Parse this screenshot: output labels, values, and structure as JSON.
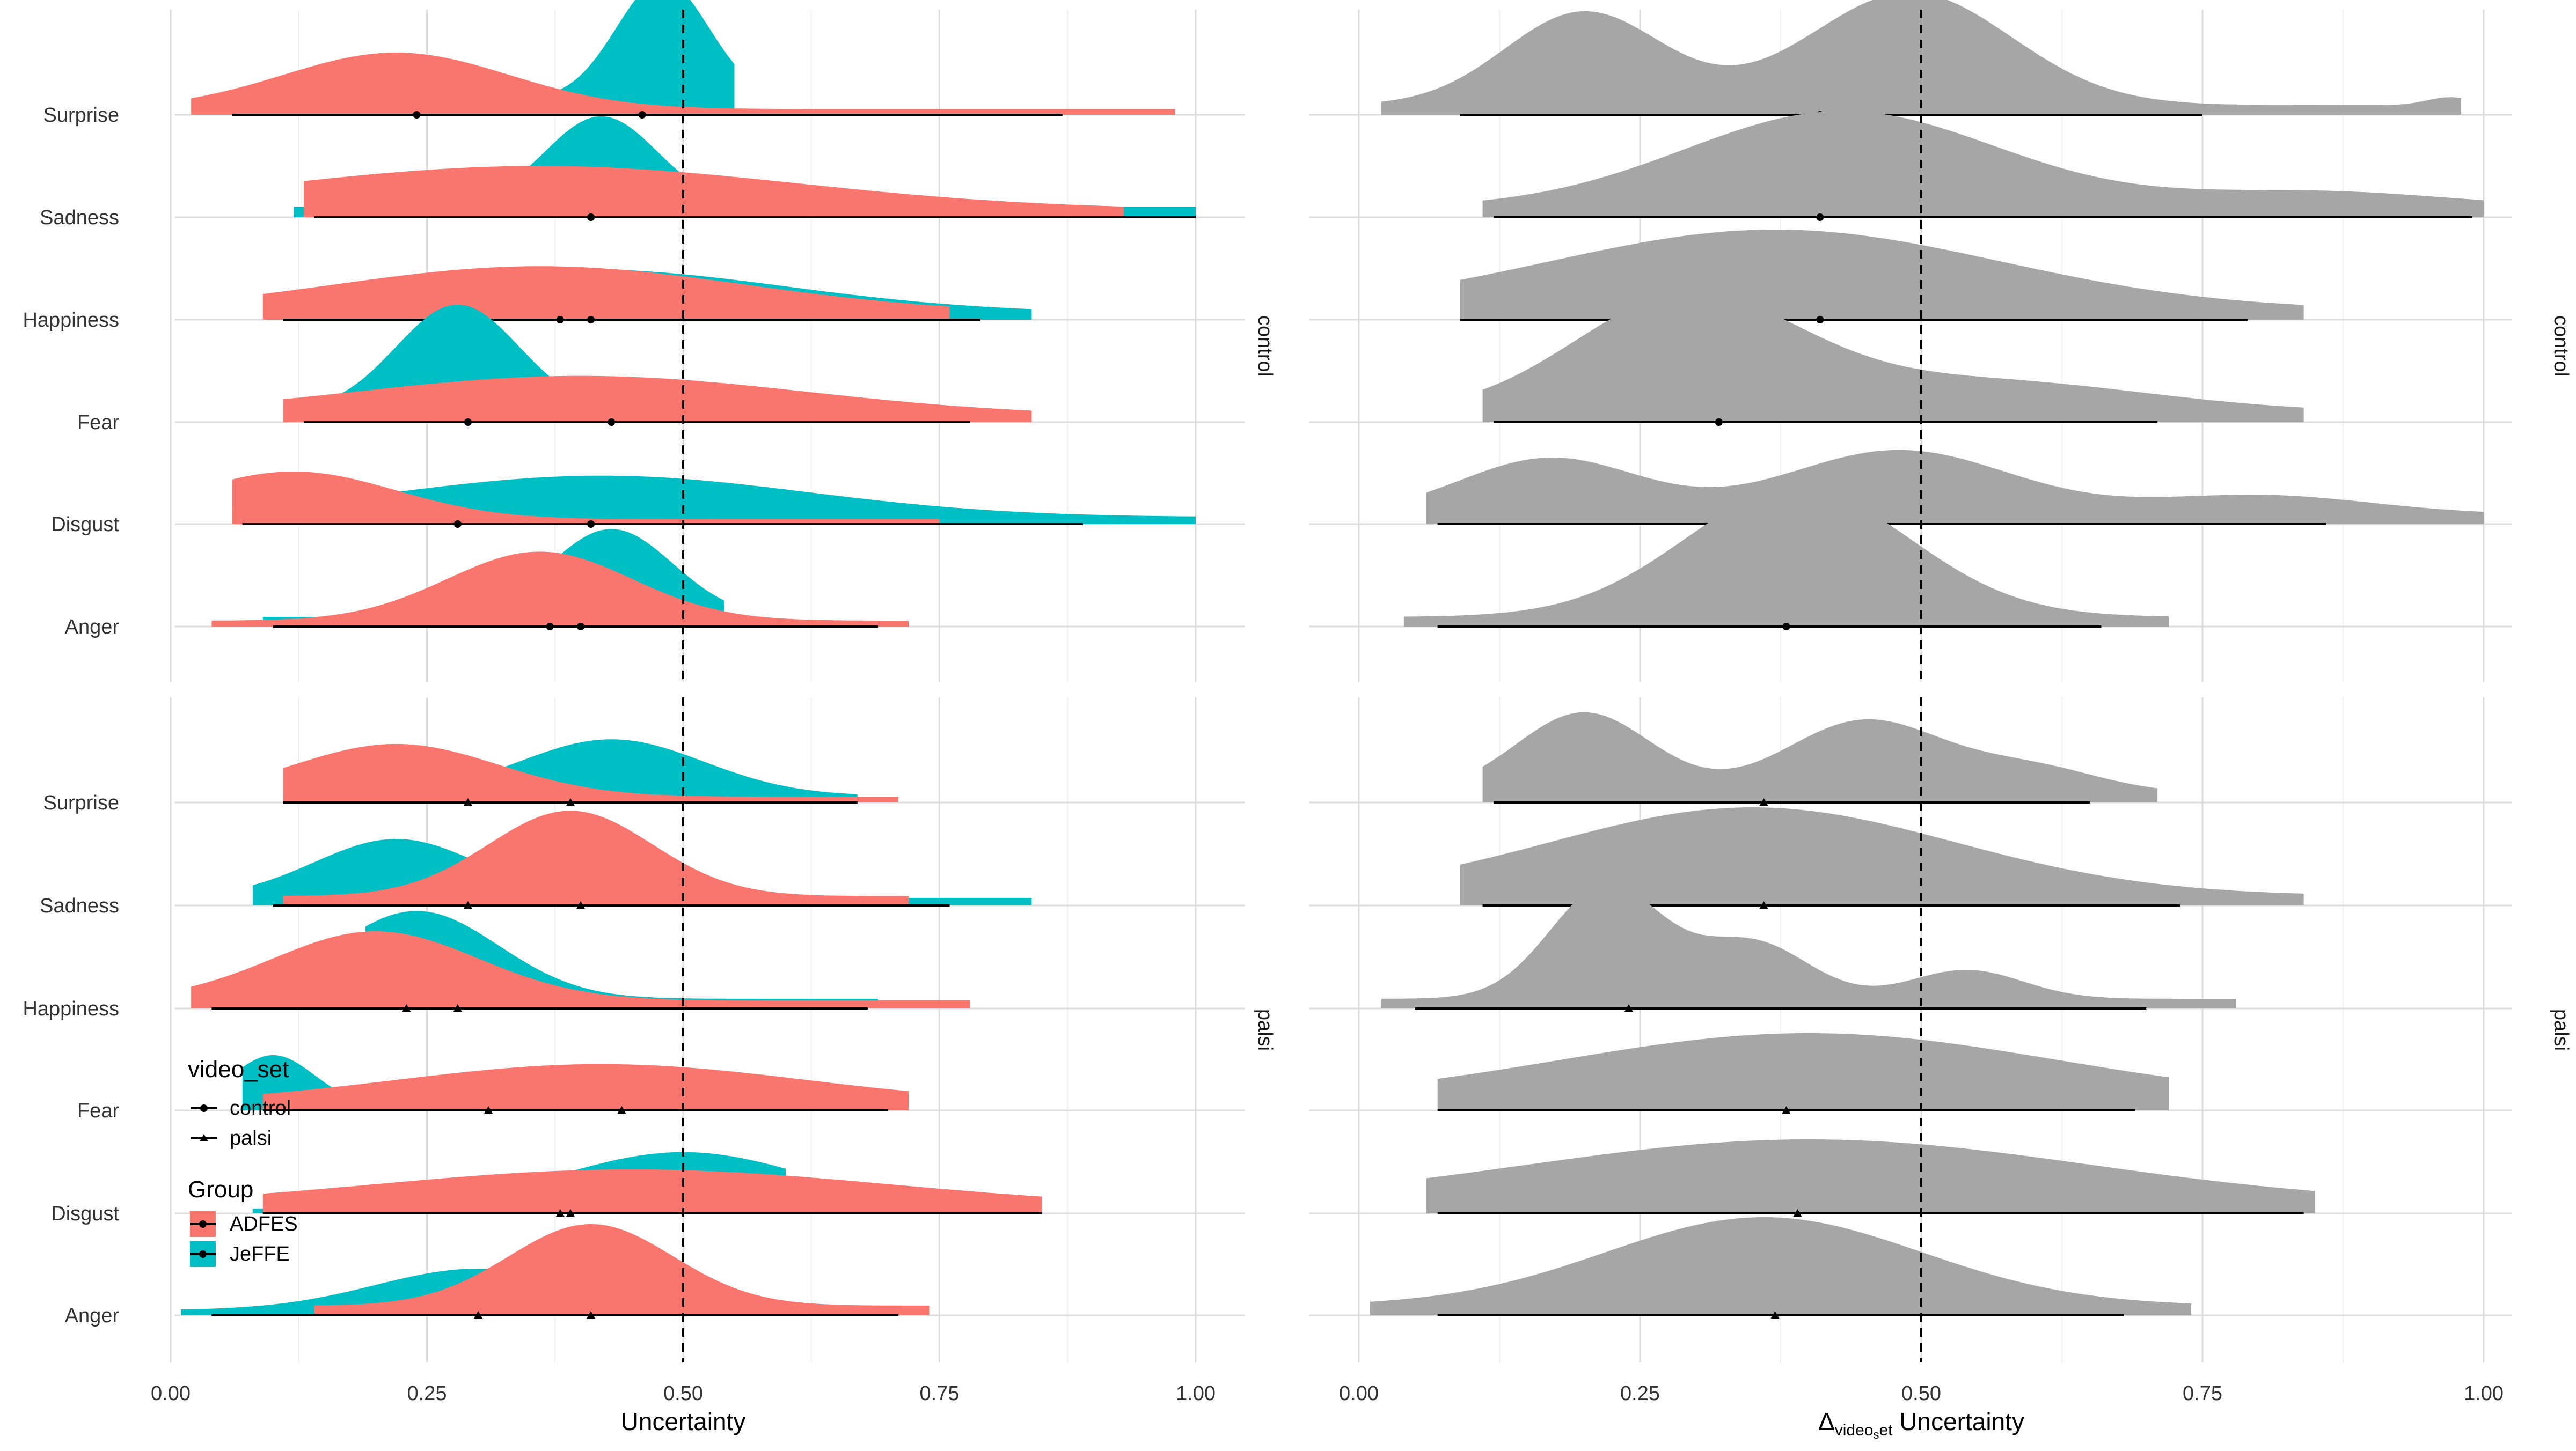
{
  "chart_data": {
    "type": "density-ridgeline",
    "x_range": [
      0,
      1
    ],
    "x_ticks": [
      "0.00",
      "0.25",
      "0.50",
      "0.75",
      "1.00"
    ],
    "reference_line_x": 0.5,
    "categories": [
      "Surprise",
      "Sadness",
      "Happiness",
      "Fear",
      "Disgust",
      "Anger"
    ],
    "colors": {
      "ADFES": "#F8766D",
      "JeFFE": "#00BFC4",
      "difference": "#A6A6A6"
    },
    "legend": {
      "position": "inside-bottom-left",
      "shape_title": "video_set",
      "shape_items": [
        {
          "label": "control",
          "shape": "circle"
        },
        {
          "label": "palsi",
          "shape": "triangle"
        }
      ],
      "color_title": "Group",
      "color_items": [
        {
          "label": "ADFES",
          "color": "#F8766D"
        },
        {
          "label": "JeFFE",
          "color": "#00BFC4"
        }
      ]
    },
    "panels": [
      {
        "name": "left",
        "xlabel": "Uncertainty",
        "rows": [
          {
            "facet": "control",
            "items": [
              {
                "emotion": "Surprise",
                "JeFFE": {
                  "extent": [
                    0.37,
                    0.55
                  ],
                  "peak": 0.48,
                  "sd": 0.045,
                  "tail": 0.15,
                  "height": 0.95,
                  "median": 0.46,
                  "range": [
                    0.37,
                    0.55
                  ]
                },
                "ADFES": {
                  "extent": [
                    0.02,
                    0.98
                  ],
                  "peak": 0.22,
                  "sd": 0.11,
                  "tail": 0.12,
                  "height": 0.45,
                  "median": 0.24,
                  "range": [
                    0.06,
                    0.87
                  ]
                }
              },
              {
                "emotion": "Sadness",
                "JeFFE": {
                  "extent": [
                    0.12,
                    1.0
                  ],
                  "peak": 0.42,
                  "sd": 0.055,
                  "tail": 0.14,
                  "height": 0.72,
                  "median": 0.41,
                  "range": [
                    0.14,
                    1.0
                  ]
                },
                "ADFES": {
                  "extent": [
                    0.13,
                    0.93
                  ],
                  "peak": 0.36,
                  "sd": 0.25,
                  "tail": 0.2,
                  "height": 0.35,
                  "median": 0.41,
                  "range": [
                    0.14,
                    1.0
                  ]
                }
              },
              {
                "emotion": "Happiness",
                "JeFFE": {
                  "extent": [
                    0.09,
                    0.84
                  ],
                  "peak": 0.4,
                  "sd": 0.2,
                  "tail": 0.18,
                  "height": 0.35,
                  "median": 0.41,
                  "range": [
                    0.11,
                    0.79
                  ]
                },
                "ADFES": {
                  "extent": [
                    0.09,
                    0.76
                  ],
                  "peak": 0.36,
                  "sd": 0.2,
                  "tail": 0.18,
                  "height": 0.37,
                  "median": 0.38,
                  "range": [
                    0.11,
                    0.79
                  ]
                }
              },
              {
                "emotion": "Fear",
                "JeFFE": {
                  "extent": [
                    0.12,
                    0.43
                  ],
                  "peak": 0.28,
                  "sd": 0.06,
                  "tail": 0.12,
                  "height": 0.85,
                  "median": 0.43,
                  "range": [
                    0.13,
                    0.78
                  ]
                },
                "ADFES": {
                  "extent": [
                    0.11,
                    0.84
                  ],
                  "peak": 0.4,
                  "sd": 0.22,
                  "tail": 0.18,
                  "height": 0.32,
                  "median": 0.29,
                  "range": [
                    0.13,
                    0.78
                  ]
                }
              },
              {
                "emotion": "Disgust",
                "JeFFE": {
                  "extent": [
                    0.06,
                    1.0
                  ],
                  "peak": 0.42,
                  "sd": 0.2,
                  "tail": 0.2,
                  "height": 0.33,
                  "median": 0.41,
                  "range": [
                    0.07,
                    0.89
                  ]
                },
                "ADFES": {
                  "extent": [
                    0.06,
                    0.75
                  ],
                  "peak": 0.12,
                  "sd": 0.1,
                  "tail": 0.12,
                  "height": 0.38,
                  "median": 0.28,
                  "range": [
                    0.07,
                    0.89
                  ]
                }
              },
              {
                "emotion": "Anger",
                "JeFFE": {
                  "extent": [
                    0.09,
                    0.54
                  ],
                  "peak": 0.43,
                  "sd": 0.06,
                  "tail": 0.13,
                  "height": 0.7,
                  "median": 0.4,
                  "range": [
                    0.1,
                    0.69
                  ]
                },
                "ADFES": {
                  "extent": [
                    0.04,
                    0.72
                  ],
                  "peak": 0.36,
                  "sd": 0.09,
                  "tail": 0.1,
                  "height": 0.55,
                  "median": 0.37,
                  "range": [
                    0.1,
                    0.69
                  ]
                }
              }
            ]
          },
          {
            "facet": "palsi",
            "items": [
              {
                "emotion": "Surprise",
                "JeFFE": {
                  "extent": [
                    0.11,
                    0.67
                  ],
                  "peak": 0.43,
                  "sd": 0.09,
                  "tail": 0.14,
                  "height": 0.45,
                  "median": 0.39,
                  "range": [
                    0.11,
                    0.67
                  ]
                },
                "ADFES": {
                  "extent": [
                    0.11,
                    0.71
                  ],
                  "peak": 0.22,
                  "sd": 0.1,
                  "tail": 0.13,
                  "height": 0.42,
                  "median": 0.29,
                  "range": [
                    0.11,
                    0.67
                  ]
                }
              },
              {
                "emotion": "Sadness",
                "JeFFE": {
                  "extent": [
                    0.08,
                    0.84
                  ],
                  "peak": 0.22,
                  "sd": 0.08,
                  "tail": 0.15,
                  "height": 0.47,
                  "median": 0.29,
                  "range": [
                    0.1,
                    0.76
                  ]
                },
                "ADFES": {
                  "extent": [
                    0.11,
                    0.72
                  ],
                  "peak": 0.39,
                  "sd": 0.08,
                  "tail": 0.13,
                  "height": 0.68,
                  "median": 0.4,
                  "range": [
                    0.1,
                    0.76
                  ]
                }
              },
              {
                "emotion": "Happiness",
                "JeFFE": {
                  "extent": [
                    0.19,
                    0.69
                  ],
                  "peak": 0.24,
                  "sd": 0.08,
                  "tail": 0.13,
                  "height": 0.7,
                  "median": 0.28,
                  "range": [
                    0.04,
                    0.68
                  ]
                },
                "ADFES": {
                  "extent": [
                    0.02,
                    0.78
                  ],
                  "peak": 0.2,
                  "sd": 0.1,
                  "tail": 0.14,
                  "height": 0.55,
                  "median": 0.23,
                  "range": [
                    0.04,
                    0.68
                  ]
                }
              },
              {
                "emotion": "Fear",
                "JeFFE": {
                  "extent": [
                    0.07,
                    0.56
                  ],
                  "peak": 0.1,
                  "sd": 0.04,
                  "tail": 0.12,
                  "height": 0.4,
                  "median": 0.31,
                  "range": [
                    0.09,
                    0.7
                  ]
                },
                "ADFES": {
                  "extent": [
                    0.09,
                    0.72
                  ],
                  "peak": 0.42,
                  "sd": 0.2,
                  "tail": 0.18,
                  "height": 0.32,
                  "median": 0.44,
                  "range": [
                    0.09,
                    0.7
                  ]
                }
              },
              {
                "emotion": "Disgust",
                "JeFFE": {
                  "extent": [
                    0.08,
                    0.6
                  ],
                  "peak": 0.5,
                  "sd": 0.12,
                  "tail": 0.1,
                  "height": 0.45,
                  "median": 0.38,
                  "range": [
                    0.09,
                    0.85
                  ]
                },
                "ADFES": {
                  "extent": [
                    0.09,
                    0.85
                  ],
                  "peak": 0.45,
                  "sd": 0.25,
                  "tail": 0.2,
                  "height": 0.3,
                  "median": 0.39,
                  "range": [
                    0.09,
                    0.85
                  ]
                }
              },
              {
                "emotion": "Anger",
                "JeFFE": {
                  "extent": [
                    0.01,
                    0.7
                  ],
                  "peak": 0.3,
                  "sd": 0.1,
                  "tail": 0.15,
                  "height": 0.33,
                  "median": 0.3,
                  "range": [
                    0.04,
                    0.71
                  ]
                },
                "ADFES": {
                  "extent": [
                    0.14,
                    0.74
                  ],
                  "peak": 0.41,
                  "sd": 0.08,
                  "tail": 0.14,
                  "height": 0.65,
                  "median": 0.41,
                  "range": [
                    0.04,
                    0.71
                  ]
                }
              }
            ]
          }
        ]
      },
      {
        "name": "right",
        "xlabel_main": "Δ",
        "xlabel_sub": "video",
        "xlabel_subsub": "s",
        "xlabel_sub2": "et",
        "xlabel_tail": " Uncertainty",
        "rows": [
          {
            "facet": "control",
            "items": [
              {
                "emotion": "Surprise",
                "difference": {
                  "extent": [
                    0.02,
                    0.98
                  ],
                  "peaks": [
                    [
                      0.2,
                      0.07,
                      0.58
                    ],
                    [
                      0.49,
                      0.09,
                      0.7
                    ],
                    [
                      0.97,
                      0.02,
                      0.05
                    ]
                  ],
                  "median": 0.41,
                  "range": [
                    0.09,
                    0.75
                  ]
                }
              },
              {
                "emotion": "Sadness",
                "difference": {
                  "extent": [
                    0.11,
                    1.0
                  ],
                  "peaks": [
                    [
                      0.43,
                      0.14,
                      0.6
                    ],
                    [
                      0.85,
                      0.12,
                      0.1
                    ]
                  ],
                  "median": 0.41,
                  "range": [
                    0.12,
                    0.99
                  ]
                }
              },
              {
                "emotion": "Happiness",
                "difference": {
                  "extent": [
                    0.09,
                    0.84
                  ],
                  "peaks": [
                    [
                      0.37,
                      0.2,
                      0.5
                    ]
                  ],
                  "median": 0.41,
                  "range": [
                    0.09,
                    0.79
                  ]
                }
              },
              {
                "emotion": "Fear",
                "difference": {
                  "extent": [
                    0.11,
                    0.84
                  ],
                  "peaks": [
                    [
                      0.29,
                      0.1,
                      0.7
                    ],
                    [
                      0.55,
                      0.15,
                      0.2
                    ]
                  ],
                  "median": 0.32,
                  "range": [
                    0.12,
                    0.71
                  ]
                }
              },
              {
                "emotion": "Disgust",
                "difference": {
                  "extent": [
                    0.06,
                    1.0
                  ],
                  "peaks": [
                    [
                      0.17,
                      0.08,
                      0.35
                    ],
                    [
                      0.48,
                      0.1,
                      0.4
                    ],
                    [
                      0.8,
                      0.1,
                      0.12
                    ]
                  ],
                  "median": 0.39,
                  "range": [
                    0.07,
                    0.86
                  ]
                }
              },
              {
                "emotion": "Anger",
                "difference": {
                  "extent": [
                    0.04,
                    0.72
                  ],
                  "peaks": [
                    [
                      0.39,
                      0.1,
                      0.8
                    ]
                  ],
                  "median": 0.38,
                  "range": [
                    0.07,
                    0.66
                  ]
                }
              }
            ]
          },
          {
            "facet": "palsi",
            "items": [
              {
                "emotion": "Surprise",
                "difference": {
                  "extent": [
                    0.11,
                    0.71
                  ],
                  "peaks": [
                    [
                      0.2,
                      0.06,
                      0.5
                    ],
                    [
                      0.45,
                      0.07,
                      0.45
                    ],
                    [
                      0.6,
                      0.06,
                      0.15
                    ]
                  ],
                  "median": 0.36,
                  "range": [
                    0.12,
                    0.65
                  ]
                }
              },
              {
                "emotion": "Sadness",
                "difference": {
                  "extent": [
                    0.09,
                    0.84
                  ],
                  "peaks": [
                    [
                      0.35,
                      0.18,
                      0.55
                    ]
                  ],
                  "median": 0.36,
                  "range": [
                    0.11,
                    0.73
                  ]
                }
              },
              {
                "emotion": "Happiness",
                "difference": {
                  "extent": [
                    0.02,
                    0.78
                  ],
                  "peaks": [
                    [
                      0.22,
                      0.05,
                      0.7
                    ],
                    [
                      0.35,
                      0.05,
                      0.35
                    ],
                    [
                      0.54,
                      0.05,
                      0.18
                    ]
                  ],
                  "median": 0.24,
                  "range": [
                    0.05,
                    0.7
                  ]
                }
              },
              {
                "emotion": "Fear",
                "difference": {
                  "extent": [
                    0.07,
                    0.72
                  ],
                  "peaks": [
                    [
                      0.4,
                      0.22,
                      0.42
                    ]
                  ],
                  "median": 0.38,
                  "range": [
                    0.07,
                    0.69
                  ]
                }
              },
              {
                "emotion": "Disgust",
                "difference": {
                  "extent": [
                    0.06,
                    0.85
                  ],
                  "peaks": [
                    [
                      0.4,
                      0.25,
                      0.4
                    ]
                  ],
                  "median": 0.39,
                  "range": [
                    0.07,
                    0.84
                  ]
                }
              },
              {
                "emotion": "Anger",
                "difference": {
                  "extent": [
                    0.01,
                    0.74
                  ],
                  "peaks": [
                    [
                      0.36,
                      0.14,
                      0.55
                    ]
                  ],
                  "median": 0.37,
                  "range": [
                    0.07,
                    0.68
                  ]
                }
              }
            ]
          }
        ]
      }
    ]
  }
}
